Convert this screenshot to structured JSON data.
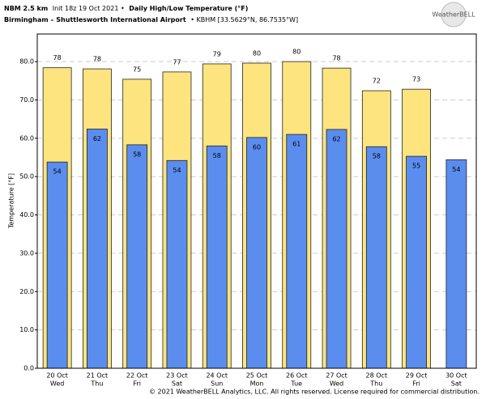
{
  "chart_data": {
    "type": "bar",
    "title": [
      "NBM 2.5 km",
      "Init 18z 19 Oct 2021 •",
      "Daily High/Low Temperature (°F)"
    ],
    "subtitle": [
      "Birmingham – Shuttlesworth International Airport",
      "• KBHM [33.5629°N, 86.7535°W]"
    ],
    "logo": "WeatherBELL",
    "y_label": "Temperature [°F]",
    "footer": "© 2021 WeatherBELL Analytics, LLC. All rights reserved. License required for commercial distribution.",
    "categories": [
      "20 Oct",
      "21 Oct",
      "22 Oct",
      "23 Oct",
      "24 Oct",
      "25 Oct",
      "26 Oct",
      "27 Oct",
      "28 Oct",
      "29 Oct",
      "30 Oct"
    ],
    "category_sublabels": [
      "Wed",
      "Thu",
      "Fri",
      "Sat",
      "Sun",
      "Mon",
      "Tue",
      "Wed",
      "Thu",
      "Fri",
      "Sat"
    ],
    "series": [
      {
        "name": "High",
        "color": "#fde47f",
        "values": [
          78.4,
          78.1,
          75.4,
          77.3,
          79.4,
          79.6,
          80.0,
          78.3,
          72.4,
          72.8,
          null
        ],
        "value_labels": [
          "78",
          "78",
          "75",
          "77",
          "79",
          "80",
          "80",
          "78",
          "72",
          "73",
          null
        ]
      },
      {
        "name": "Low",
        "color": "#5b8def",
        "values": [
          53.8,
          62.4,
          58.3,
          54.2,
          58.0,
          60.2,
          61.0,
          62.3,
          57.8,
          55.3,
          54.4
        ],
        "value_labels": [
          "54",
          "62",
          "58",
          "54",
          "58",
          "60",
          "61",
          "62",
          "58",
          "55",
          "54"
        ]
      }
    ],
    "ylim": [
      0,
      87.2
    ],
    "yticks": [
      {
        "value": 0,
        "label": "0.0"
      },
      {
        "value": 10,
        "label": "10.0"
      },
      {
        "value": 20,
        "label": "20.0"
      },
      {
        "value": 30,
        "label": "30.0"
      },
      {
        "value": 40,
        "label": "40.0"
      },
      {
        "value": 50,
        "label": "50.0"
      },
      {
        "value": 60,
        "label": "60.0"
      },
      {
        "value": 70,
        "label": "70.0"
      },
      {
        "value": 80,
        "label": "80.0"
      }
    ],
    "grid": true
  }
}
